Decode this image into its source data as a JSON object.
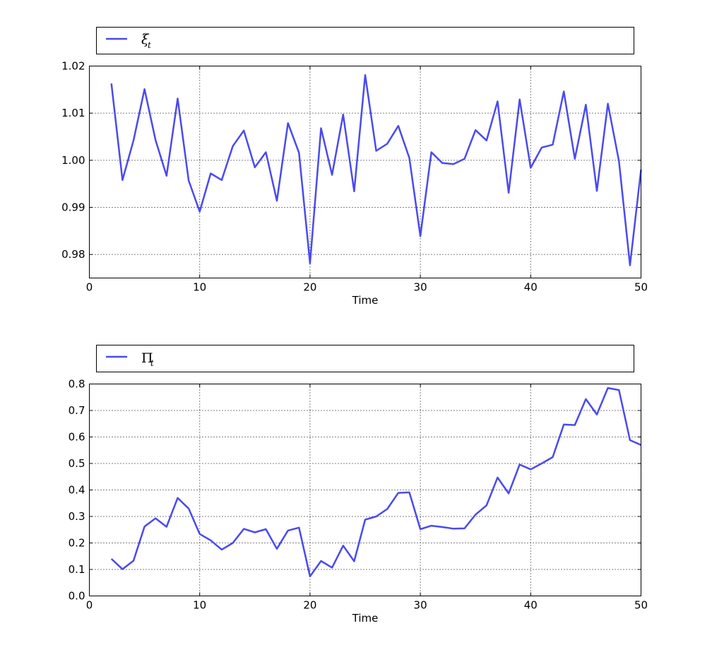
{
  "chart_data": [
    {
      "type": "line",
      "legend": {
        "symbol": "ξ",
        "subscript": "t",
        "placement": "above"
      },
      "xlabel": "Time",
      "ylabel": "",
      "xlim": [
        0,
        50
      ],
      "ylim": [
        0.975,
        1.02
      ],
      "xticks": [
        0,
        10,
        20,
        30,
        40,
        50
      ],
      "yticks": [
        0.98,
        0.99,
        1.0,
        1.01,
        1.02
      ],
      "ytick_labels": [
        "0.98",
        "0.99",
        "1.00",
        "1.01",
        "1.02"
      ],
      "grid": true,
      "color": "#4a4af0",
      "x": [
        2,
        3,
        4,
        5,
        6,
        7,
        8,
        9,
        10,
        11,
        12,
        13,
        14,
        15,
        16,
        17,
        18,
        19,
        20,
        21,
        22,
        23,
        24,
        25,
        26,
        27,
        28,
        29,
        30,
        31,
        32,
        33,
        34,
        35,
        36,
        37,
        38,
        39,
        40,
        41,
        42,
        43,
        44,
        45,
        46,
        47,
        48,
        49,
        50
      ],
      "y": [
        1.0163,
        0.9958,
        1.0042,
        1.0151,
        1.0043,
        0.9967,
        1.0131,
        0.9957,
        0.9891,
        0.9972,
        0.9958,
        1.003,
        1.0063,
        0.9985,
        1.0017,
        0.9914,
        1.0079,
        1.0016,
        0.9781,
        1.0068,
        0.9969,
        1.0097,
        0.9934,
        1.0181,
        1.002,
        1.0035,
        1.0073,
        1.0005,
        0.9839,
        1.0017,
        0.9994,
        0.9992,
        1.0003,
        1.0064,
        1.0042,
        1.0125,
        0.9931,
        1.0129,
        0.9984,
        1.0027,
        1.0033,
        1.0146,
        1.0003,
        1.0118,
        0.9935,
        1.012,
        0.9998,
        0.9777,
        0.998
      ]
    },
    {
      "type": "line",
      "legend": {
        "symbol": "Π",
        "subscript": "t",
        "placement": "above"
      },
      "xlabel": "Time",
      "ylabel": "",
      "xlim": [
        0,
        50
      ],
      "ylim": [
        0.0,
        0.8
      ],
      "xticks": [
        0,
        10,
        20,
        30,
        40,
        50
      ],
      "yticks": [
        0.0,
        0.1,
        0.2,
        0.3,
        0.4,
        0.5,
        0.6,
        0.7,
        0.8
      ],
      "ytick_labels": [
        "0.0",
        "0.1",
        "0.2",
        "0.3",
        "0.4",
        "0.5",
        "0.6",
        "0.7",
        "0.8"
      ],
      "grid": true,
      "color": "#4a4af0",
      "x": [
        2,
        3,
        4,
        5,
        6,
        7,
        8,
        9,
        10,
        11,
        12,
        13,
        14,
        15,
        16,
        17,
        18,
        19,
        20,
        21,
        22,
        23,
        24,
        25,
        26,
        27,
        28,
        29,
        30,
        31,
        32,
        33,
        34,
        35,
        36,
        37,
        38,
        39,
        40,
        41,
        42,
        43,
        44,
        45,
        46,
        47,
        48,
        49,
        50
      ],
      "y": [
        0.14,
        0.101,
        0.133,
        0.262,
        0.293,
        0.261,
        0.37,
        0.33,
        0.234,
        0.21,
        0.175,
        0.2,
        0.253,
        0.24,
        0.252,
        0.178,
        0.247,
        0.258,
        0.074,
        0.132,
        0.107,
        0.19,
        0.131,
        0.288,
        0.3,
        0.328,
        0.389,
        0.391,
        0.252,
        0.265,
        0.26,
        0.254,
        0.255,
        0.307,
        0.342,
        0.447,
        0.387,
        0.496,
        0.478,
        0.5,
        0.524,
        0.647,
        0.645,
        0.743,
        0.685,
        0.785,
        0.777,
        0.588,
        0.57
      ]
    }
  ]
}
